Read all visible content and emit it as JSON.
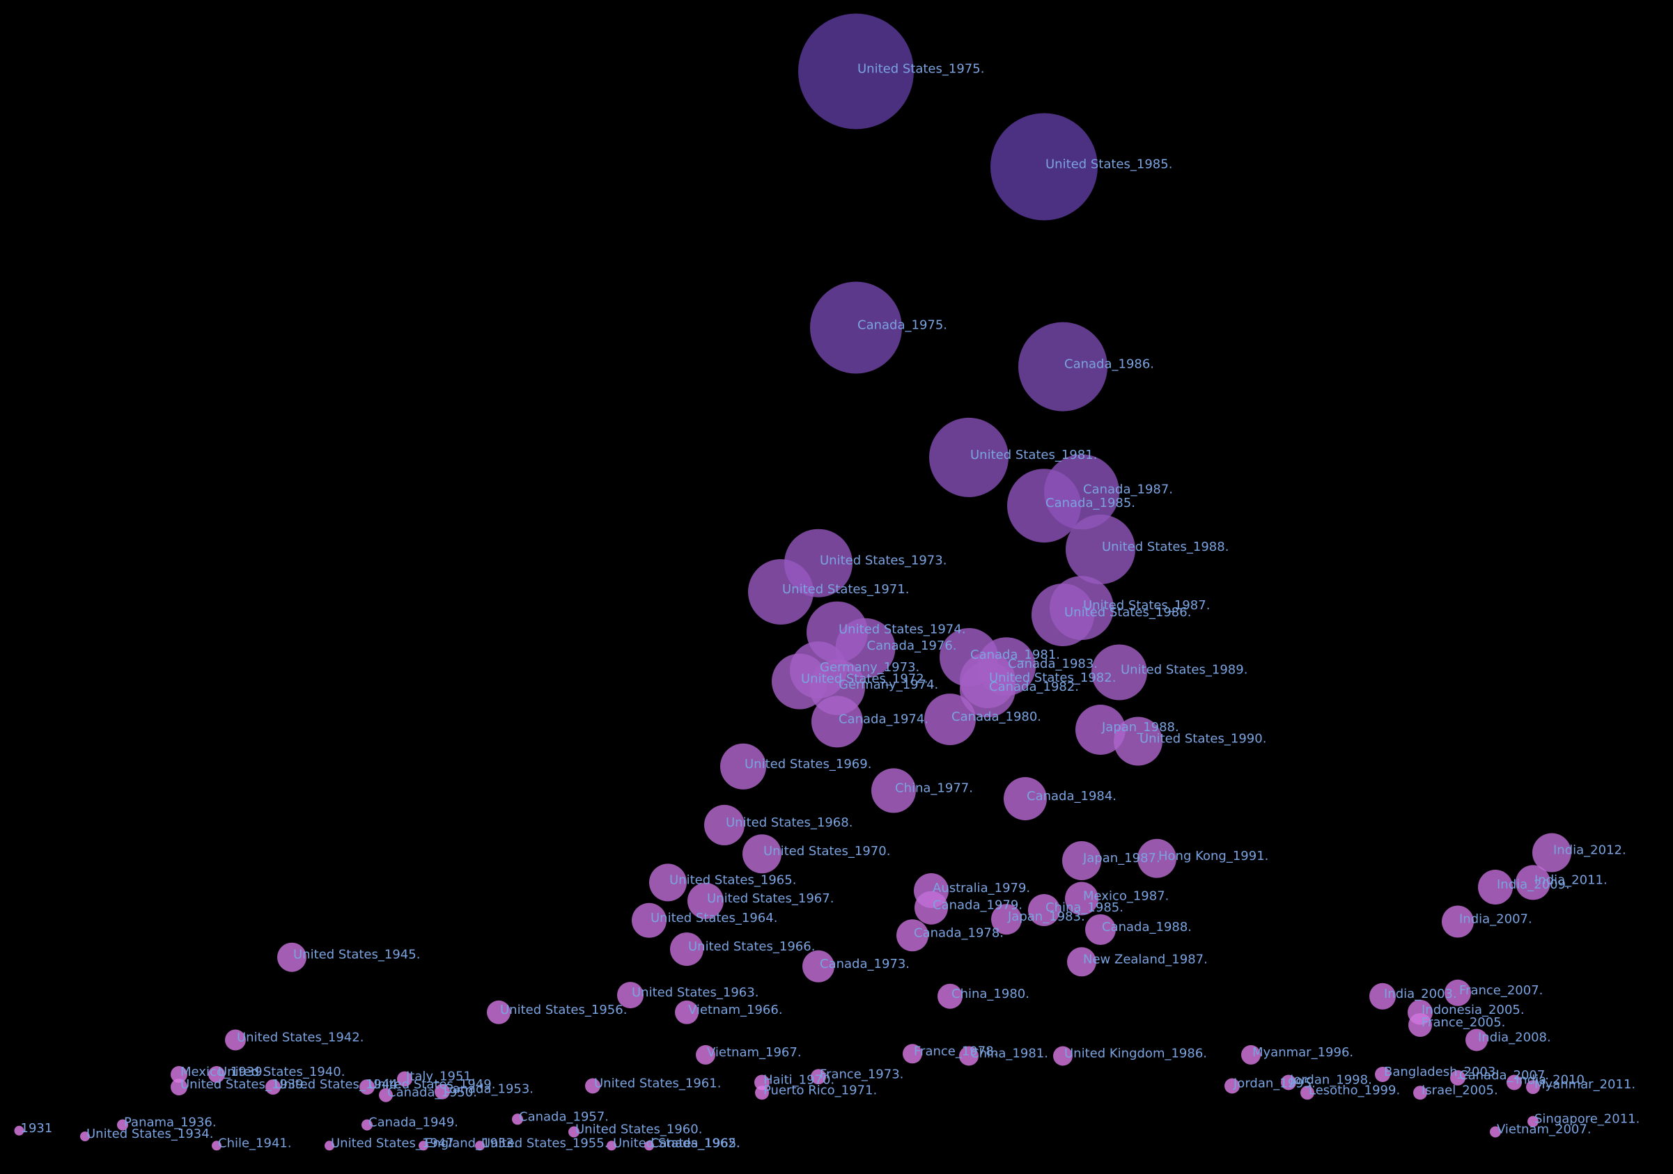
{
  "chart_data": {
    "type": "scatter",
    "encoding": "bubble",
    "title": "",
    "xlabel": "",
    "ylabel": "",
    "xlim": [
      1930,
      2013
    ],
    "ylim": [
      0,
      1000
    ],
    "axes_visible": false,
    "grid": false,
    "colors": {
      "background": "#000000",
      "small": "#e07ee8",
      "large": "#5b3a9c",
      "label": "#7aa3e0"
    },
    "points": [
      {
        "label": "United States_1975.",
        "x": 1975,
        "y": 950,
        "r": 83
      },
      {
        "label": "United States_1985.",
        "x": 1985,
        "y": 867,
        "r": 77
      },
      {
        "label": "Canada_1975.",
        "x": 1975,
        "y": 727,
        "r": 66
      },
      {
        "label": "Canada_1986.",
        "x": 1986,
        "y": 693,
        "r": 64
      },
      {
        "label": "United States_1981.",
        "x": 1981,
        "y": 614,
        "r": 57
      },
      {
        "label": "Canada_1987.",
        "x": 1987,
        "y": 584,
        "r": 54
      },
      {
        "label": "Canada_1985.",
        "x": 1985,
        "y": 572,
        "r": 53
      },
      {
        "label": "United States_1988.",
        "x": 1988,
        "y": 534,
        "r": 50
      },
      {
        "label": "United States_1973.",
        "x": 1973,
        "y": 522,
        "r": 49
      },
      {
        "label": "United States_1971.",
        "x": 1971,
        "y": 497,
        "r": 47
      },
      {
        "label": "United States_1987.",
        "x": 1987,
        "y": 483,
        "r": 46
      },
      {
        "label": "United States_1986.",
        "x": 1986,
        "y": 477,
        "r": 45
      },
      {
        "label": "United States_1974.",
        "x": 1974,
        "y": 462,
        "r": 44
      },
      {
        "label": "Canada_1976.",
        "x": 1975.5,
        "y": 448,
        "r": 43
      },
      {
        "label": "Canada_1981.",
        "x": 1981,
        "y": 440,
        "r": 42
      },
      {
        "label": "Canada_1983.",
        "x": 1983,
        "y": 432,
        "r": 42
      },
      {
        "label": "Germany_1973.",
        "x": 1973,
        "y": 429,
        "r": 41
      },
      {
        "label": "United States_1972.",
        "x": 1972,
        "y": 419,
        "r": 40
      },
      {
        "label": "United States_1982.",
        "x": 1982,
        "y": 420,
        "r": 40
      },
      {
        "label": "Germany_1974.",
        "x": 1974,
        "y": 414,
        "r": 40
      },
      {
        "label": "United States_1989.",
        "x": 1989,
        "y": 427,
        "r": 40
      },
      {
        "label": "Canada_1982.",
        "x": 1982,
        "y": 412,
        "r": 40
      },
      {
        "label": "Canada_1980.",
        "x": 1980,
        "y": 386,
        "r": 37
      },
      {
        "label": "Canada_1974.",
        "x": 1974,
        "y": 384,
        "r": 37
      },
      {
        "label": "Japan_1988.",
        "x": 1988,
        "y": 377,
        "r": 36
      },
      {
        "label": "United States_1990.",
        "x": 1990,
        "y": 367,
        "r": 35
      },
      {
        "label": "United States_1969.",
        "x": 1969,
        "y": 345,
        "r": 33
      },
      {
        "label": "China_1977.",
        "x": 1977,
        "y": 324,
        "r": 32
      },
      {
        "label": "Canada_1984.",
        "x": 1984,
        "y": 317,
        "r": 31
      },
      {
        "label": "United States_1968.",
        "x": 1968,
        "y": 294,
        "r": 29
      },
      {
        "label": "United States_1970.",
        "x": 1970,
        "y": 269,
        "r": 28
      },
      {
        "label": "Japan_1987.",
        "x": 1987,
        "y": 263,
        "r": 28
      },
      {
        "label": "Hong Kong_1991.",
        "x": 1991,
        "y": 265,
        "r": 28
      },
      {
        "label": "United States_1965.",
        "x": 1965,
        "y": 244,
        "r": 27
      },
      {
        "label": "United States_1967.",
        "x": 1967,
        "y": 228,
        "r": 26
      },
      {
        "label": "United States_1964.",
        "x": 1964,
        "y": 211,
        "r": 25
      },
      {
        "label": "United States_1966.",
        "x": 1966,
        "y": 186,
        "r": 24
      },
      {
        "label": "Canada_1973.",
        "x": 1973,
        "y": 171,
        "r": 23
      },
      {
        "label": "Australia_1979.",
        "x": 1979,
        "y": 237,
        "r": 25
      },
      {
        "label": "Canada_1979.",
        "x": 1979,
        "y": 222,
        "r": 24
      },
      {
        "label": "China_1985.",
        "x": 1985,
        "y": 220,
        "r": 23
      },
      {
        "label": "Mexico_1987.",
        "x": 1987,
        "y": 230,
        "r": 24
      },
      {
        "label": "Canada_1978.",
        "x": 1978,
        "y": 198,
        "r": 23
      },
      {
        "label": "Japan_1983.",
        "x": 1983,
        "y": 212,
        "r": 22
      },
      {
        "label": "Canada_1988.",
        "x": 1988,
        "y": 203,
        "r": 22
      },
      {
        "label": "New Zealand_1987.",
        "x": 1987,
        "y": 175,
        "r": 21
      },
      {
        "label": "India_2012.",
        "x": 2012,
        "y": 270,
        "r": 28
      },
      {
        "label": "India_2011.",
        "x": 2011,
        "y": 244,
        "r": 25
      },
      {
        "label": "India_2009.",
        "x": 2009,
        "y": 240,
        "r": 25
      },
      {
        "label": "India_2007.",
        "x": 2007,
        "y": 210,
        "r": 23
      },
      {
        "label": "India_2003.",
        "x": 2003,
        "y": 145,
        "r": 19
      },
      {
        "label": "France_2007.",
        "x": 2007,
        "y": 148,
        "r": 19
      },
      {
        "label": "Indonesia_2005.",
        "x": 2005,
        "y": 131,
        "r": 18
      },
      {
        "label": "France_2005.",
        "x": 2005,
        "y": 120,
        "r": 17
      },
      {
        "label": "India_2008.",
        "x": 2008,
        "y": 107,
        "r": 16
      },
      {
        "label": "United States_1945.",
        "x": 1945,
        "y": 179,
        "r": 21
      },
      {
        "label": "United States_1942.",
        "x": 1942,
        "y": 107,
        "r": 15
      },
      {
        "label": "United States_1963.",
        "x": 1963,
        "y": 146,
        "r": 19
      },
      {
        "label": "United States_1956.",
        "x": 1956,
        "y": 131,
        "r": 17
      },
      {
        "label": "Vietnam_1966.",
        "x": 1966,
        "y": 131,
        "r": 17
      },
      {
        "label": "China_1980.",
        "x": 1980,
        "y": 145,
        "r": 18
      },
      {
        "label": "Vietnam_1967.",
        "x": 1967,
        "y": 94,
        "r": 14
      },
      {
        "label": "Myanmar_1996.",
        "x": 1996,
        "y": 94,
        "r": 14
      },
      {
        "label": "China_1981.",
        "x": 1981,
        "y": 93,
        "r": 14
      },
      {
        "label": "United Kingdom_1986.",
        "x": 1986,
        "y": 93,
        "r": 14
      },
      {
        "label": "France_1978.",
        "x": 1978,
        "y": 95,
        "r": 14
      },
      {
        "label": "Mexico_1939.",
        "x": 1939,
        "y": 77,
        "r": 12
      },
      {
        "label": "United States_1940.",
        "x": 1941,
        "y": 77,
        "r": 12
      },
      {
        "label": "United States_1939.",
        "x": 1939,
        "y": 66,
        "r": 12
      },
      {
        "label": "United States_1944.",
        "x": 1944,
        "y": 66,
        "r": 11
      },
      {
        "label": "Italy_1951.",
        "x": 1951,
        "y": 73,
        "r": 11
      },
      {
        "label": "United States_1949.",
        "x": 1949,
        "y": 66,
        "r": 11
      },
      {
        "label": "Canada_1953.",
        "x": 1953,
        "y": 62,
        "r": 11
      },
      {
        "label": "Canada_1950.",
        "x": 1950,
        "y": 59,
        "r": 10
      },
      {
        "label": "United States_1961.",
        "x": 1961,
        "y": 67,
        "r": 11
      },
      {
        "label": "Haiti_1970.",
        "x": 1970,
        "y": 70,
        "r": 11
      },
      {
        "label": "France_1973.",
        "x": 1973,
        "y": 75,
        "r": 11
      },
      {
        "label": "Puerto Rico_1971.",
        "x": 1970,
        "y": 61,
        "r": 10
      },
      {
        "label": "Jordan_1995.",
        "x": 1995,
        "y": 67,
        "r": 11
      },
      {
        "label": "Jordan_1998.",
        "x": 1998,
        "y": 70,
        "r": 11
      },
      {
        "label": "Lesotho_1999.",
        "x": 1999,
        "y": 61,
        "r": 10
      },
      {
        "label": "Bangladesh_2003.",
        "x": 2003,
        "y": 77,
        "r": 11
      },
      {
        "label": "Canada_2007.",
        "x": 2007,
        "y": 74,
        "r": 11
      },
      {
        "label": "India_2010.",
        "x": 2010,
        "y": 70,
        "r": 11
      },
      {
        "label": "Israel_2005.",
        "x": 2005,
        "y": 61,
        "r": 10
      },
      {
        "label": "Myanmar_2011.",
        "x": 2011,
        "y": 66,
        "r": 10
      },
      {
        "label": "Panama_1936.",
        "x": 1936,
        "y": 33,
        "r": 8
      },
      {
        "label": "1931",
        "x": 1930.5,
        "y": 28,
        "r": 7
      },
      {
        "label": "United States_1934.",
        "x": 1934,
        "y": 23,
        "r": 7
      },
      {
        "label": "Chile_1941.",
        "x": 1941,
        "y": 15,
        "r": 7
      },
      {
        "label": "United States_1947.",
        "x": 1947,
        "y": 15,
        "r": 7
      },
      {
        "label": "England_1953.",
        "x": 1952,
        "y": 15,
        "r": 7
      },
      {
        "label": "United States_1955.",
        "x": 1955,
        "y": 15,
        "r": 7
      },
      {
        "label": "Canada_1957.",
        "x": 1957,
        "y": 38,
        "r": 8
      },
      {
        "label": "United States_1960.",
        "x": 1960,
        "y": 27,
        "r": 8
      },
      {
        "label": "Canada_1965.",
        "x": 1964,
        "y": 15,
        "r": 7
      },
      {
        "label": "United States_1962.",
        "x": 1962,
        "y": 15,
        "r": 7
      },
      {
        "label": "Canada_1949.",
        "x": 1949,
        "y": 33,
        "r": 8
      },
      {
        "label": "Singapore_2011.",
        "x": 2011,
        "y": 36,
        "r": 8
      },
      {
        "label": "Vietnam_2007.",
        "x": 2009,
        "y": 27,
        "r": 8
      }
    ]
  }
}
